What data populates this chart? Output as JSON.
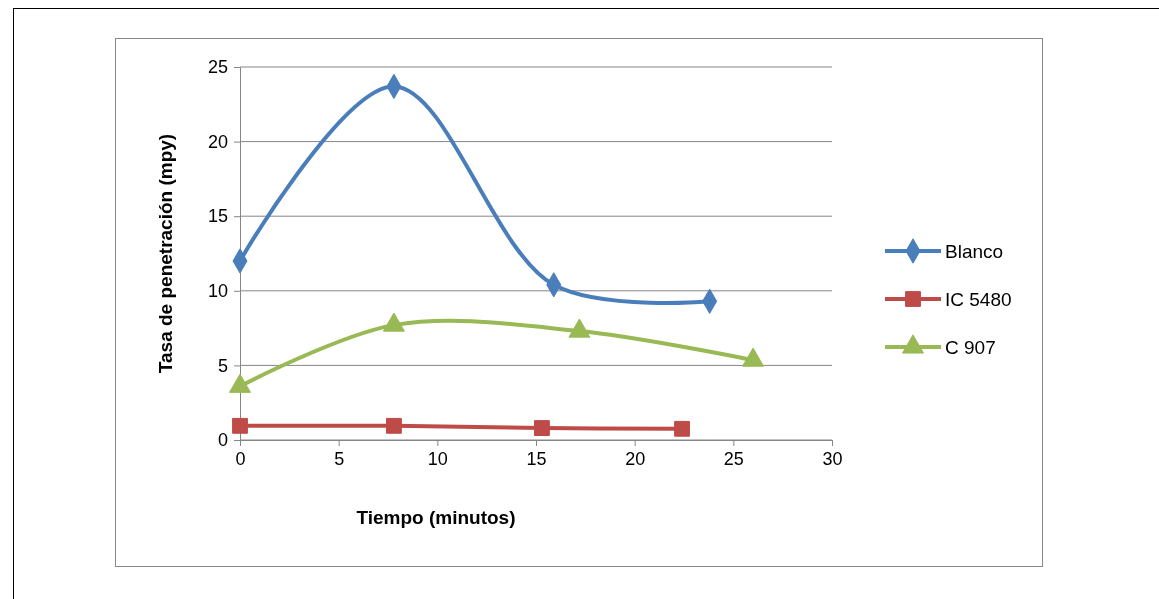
{
  "chart_data": {
    "type": "line",
    "xlabel": "Tiempo (minutos)",
    "ylabel": "Tasa de penetración (mpy)",
    "xlim": [
      0,
      30
    ],
    "xticks": [
      0,
      5,
      10,
      15,
      20,
      25,
      30
    ],
    "ylim": [
      0,
      25
    ],
    "yticks": [
      0,
      5,
      10,
      15,
      20,
      25
    ],
    "grid": "y",
    "legend": "right",
    "marker": "auto",
    "series": [
      {
        "name": "Blanco",
        "color": "#4a7ebb",
        "marker": "diamond",
        "x": [
          0,
          7.8,
          15.9,
          23.8
        ],
        "values": [
          12.0,
          23.7,
          10.4,
          9.3
        ]
      },
      {
        "name": "IC 5480",
        "color": "#be4b48",
        "marker": "square",
        "x": [
          0,
          7.8,
          15.3,
          22.4
        ],
        "values": [
          0.95,
          0.95,
          0.8,
          0.75
        ]
      },
      {
        "name": "C 907",
        "color": "#98b954",
        "marker": "triangle",
        "x": [
          0,
          7.8,
          17.2,
          26.0
        ],
        "values": [
          3.6,
          7.7,
          7.3,
          5.35
        ]
      }
    ]
  }
}
